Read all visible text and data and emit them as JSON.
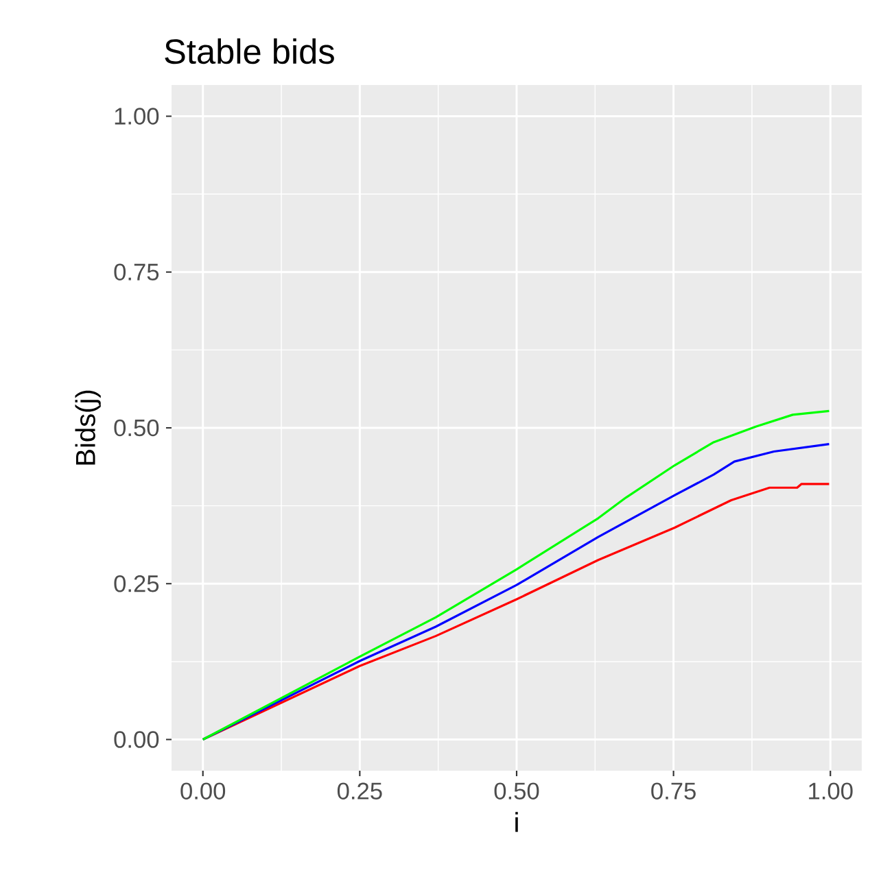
{
  "chart_data": {
    "type": "line",
    "title": "Stable bids",
    "xlabel": "i",
    "ylabel": "Bids(j)",
    "xlim": [
      -0.05,
      1.05
    ],
    "ylim": [
      -0.05,
      1.05
    ],
    "grid": true,
    "xticks": [
      {
        "value": 0,
        "label": "0.00"
      },
      {
        "value": 0.25,
        "label": "0.25"
      },
      {
        "value": 0.5,
        "label": "0.50"
      },
      {
        "value": 0.75,
        "label": "0.75"
      },
      {
        "value": 1,
        "label": "1.00"
      }
    ],
    "yticks": [
      {
        "value": 0,
        "label": "0.00"
      },
      {
        "value": 0.25,
        "label": "0.25"
      },
      {
        "value": 0.5,
        "label": "0.50"
      },
      {
        "value": 0.75,
        "label": "0.75"
      },
      {
        "value": 1,
        "label": "1.00"
      }
    ],
    "series": [
      {
        "color": "#ff0000",
        "x": [
          0,
          0.25,
          0.371,
          0.5,
          0.63,
          0.752,
          0.842,
          0.903,
          0.947,
          0.954,
          0.998
        ],
        "values": [
          0,
          0.118,
          0.166,
          0.225,
          0.288,
          0.34,
          0.384,
          0.404,
          0.404,
          0.41,
          0.41
        ]
      },
      {
        "color": "#0000ff",
        "x": [
          0,
          0.25,
          0.371,
          0.5,
          0.63,
          0.752,
          0.814,
          0.847,
          0.91,
          0.998
        ],
        "values": [
          0,
          0.126,
          0.181,
          0.248,
          0.325,
          0.392,
          0.425,
          0.446,
          0.462,
          0.474
        ]
      },
      {
        "color": "#00ff00",
        "x": [
          0,
          0.25,
          0.371,
          0.5,
          0.63,
          0.674,
          0.752,
          0.814,
          0.881,
          0.94,
          0.998
        ],
        "values": [
          0,
          0.133,
          0.196,
          0.273,
          0.355,
          0.388,
          0.44,
          0.477,
          0.502,
          0.521,
          0.527
        ]
      }
    ]
  }
}
